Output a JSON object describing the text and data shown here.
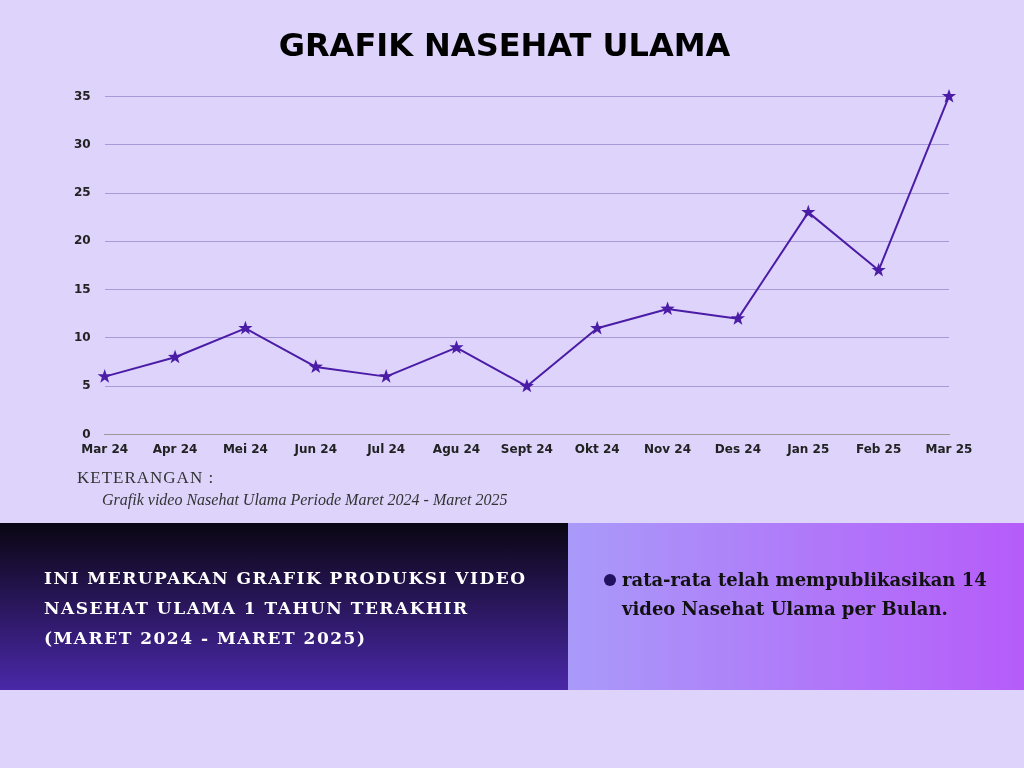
{
  "chart_data": {
    "type": "line",
    "title": "GRAFIK NASEHAT ULAMA",
    "categories": [
      "Mar 24",
      "Apr 24",
      "Mei 24",
      "Jun 24",
      "Jul 24",
      "Agu 24",
      "Sept 24",
      "Okt 24",
      "Nov 24",
      "Des 24",
      "Jan 25",
      "Feb 25",
      "Mar 25"
    ],
    "series": [
      {
        "color": "#4b1ca6",
        "values": [
          6,
          8,
          11,
          7,
          6,
          9,
          5,
          11,
          13,
          12,
          23,
          17,
          35
        ]
      }
    ],
    "ylim": [
      0,
      35
    ],
    "yticks": [
      0,
      5,
      10,
      15,
      20,
      25,
      30,
      35
    ],
    "grid": "y",
    "marker": "star",
    "legend": false,
    "annotations": [
      "KETERANGAN :",
      "Grafik video Nasehat Ulama Periode Maret 2024 - Maret 2025",
      "INI MERUPAKAN GRAFIK PRODUKSI VIDEO NASEHAT ULAMA 1 TAHUN TERAKHIR (MARET 2024 - MARET 2025)",
      "rata-rata telah mempublikasikan 14 video Nasehat Ulama per Bulan."
    ]
  }
}
